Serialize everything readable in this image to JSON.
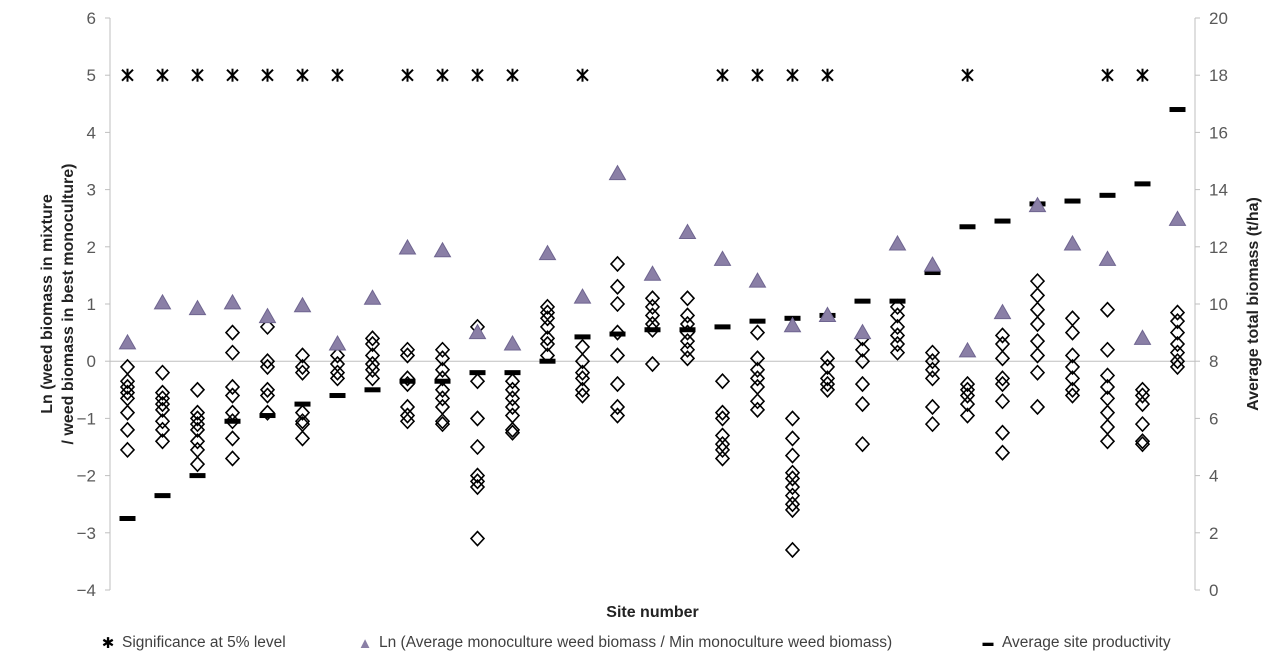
{
  "chart_data": {
    "type": "scatter",
    "xlabel": "Site number",
    "ylabel_left": "Ln (weed biomass in mixture / weed biomass in best monoculture)",
    "ylabel_left_lines": [
      "Ln (weed biomass in mixture",
      "/ weed biomass in best monoculture)"
    ],
    "ylabel_right": "Average total biomass  (t/ha)",
    "ylim_left": [
      -4,
      6
    ],
    "yticks_left": [
      -4,
      -3,
      -2,
      -1,
      0,
      1,
      2,
      3,
      4,
      5,
      6
    ],
    "ylim_right": [
      0,
      20
    ],
    "yticks_right": [
      0,
      2,
      4,
      6,
      8,
      10,
      12,
      14,
      16,
      18,
      20
    ],
    "n_sites": 31,
    "grid": false,
    "zero_line": true,
    "legend_position": "bottom",
    "series": [
      {
        "name": "Significance at 5% level",
        "marker": "asterisk",
        "axis": "left",
        "points": [
          [
            1,
            5
          ],
          [
            2,
            5
          ],
          [
            3,
            5
          ],
          [
            4,
            5
          ],
          [
            5,
            5
          ],
          [
            6,
            5
          ],
          [
            7,
            5
          ],
          [
            9,
            5
          ],
          [
            10,
            5
          ],
          [
            11,
            5
          ],
          [
            12,
            5
          ],
          [
            14,
            5
          ],
          [
            18,
            5
          ],
          [
            19,
            5
          ],
          [
            20,
            5
          ],
          [
            21,
            5
          ],
          [
            25,
            5
          ],
          [
            29,
            5
          ],
          [
            30,
            5
          ]
        ]
      },
      {
        "name": "Ln (Average monoculture weed biomass / Min monoculture weed biomass)",
        "marker": "triangle",
        "color": "#8a7fa6",
        "axis": "left",
        "values": [
          0.32,
          1.02,
          0.92,
          1.02,
          0.78,
          0.97,
          0.3,
          1.1,
          1.98,
          1.93,
          0.5,
          0.3,
          1.88,
          1.12,
          3.28,
          1.52,
          2.25,
          1.78,
          1.4,
          0.62,
          0.8,
          0.5,
          2.05,
          1.68,
          0.18,
          0.85,
          2.72,
          2.05,
          1.78,
          0.4,
          2.48
        ]
      },
      {
        "name": "Average site productivity",
        "marker": "dash",
        "axis": "right",
        "values": [
          2.5,
          3.3,
          4.0,
          5.9,
          6.1,
          6.5,
          6.8,
          7.0,
          7.3,
          7.3,
          7.6,
          7.6,
          8.0,
          8.85,
          8.95,
          9.1,
          9.1,
          9.2,
          9.4,
          9.5,
          9.6,
          10.1,
          10.1,
          11.1,
          12.7,
          12.9,
          13.5,
          13.6,
          13.8,
          14.2,
          16.8
        ]
      },
      {
        "name": "Ln (weed biomass in mixture / weed biomass in best monoculture)",
        "marker": "diamond",
        "axis": "left",
        "values": [
          [
            -0.1,
            -0.35,
            -0.45,
            -0.55,
            -0.65,
            -0.9,
            -1.2,
            -1.55
          ],
          [
            -0.2,
            -0.55,
            -0.65,
            -0.75,
            -0.85,
            -1.05,
            -1.2,
            -1.4
          ],
          [
            -0.5,
            -0.9,
            -1.0,
            -1.1,
            -1.2,
            -1.4,
            -1.55,
            -1.8
          ],
          [
            0.5,
            0.15,
            -0.45,
            -0.6,
            -0.9,
            -1.05,
            -1.35,
            -1.7
          ],
          [
            0.6,
            0.0,
            -0.1,
            -0.5,
            -0.6,
            -0.9
          ],
          [
            0.1,
            -0.1,
            -0.2,
            -0.9,
            -1.05,
            -1.1,
            -1.35
          ],
          [
            0.1,
            -0.05,
            -0.2,
            -0.3
          ],
          [
            0.4,
            0.3,
            0.1,
            -0.05,
            -0.15,
            -0.3
          ],
          [
            0.2,
            0.1,
            -0.3,
            -0.4,
            -0.8,
            -0.95,
            -1.05
          ],
          [
            0.2,
            0.05,
            -0.15,
            -0.3,
            -0.5,
            -0.65,
            -0.8,
            -1.05,
            -1.1
          ],
          [
            0.6,
            -0.35,
            -1.0,
            -1.5,
            -2.0,
            -2.1,
            -2.2,
            -3.1
          ],
          [
            -0.35,
            -0.5,
            -0.65,
            -0.8,
            -0.95,
            -1.2,
            -1.25
          ],
          [
            0.95,
            0.85,
            0.75,
            0.6,
            0.4,
            0.3,
            0.1
          ],
          [
            0.25,
            0.0,
            -0.2,
            -0.3,
            -0.5,
            -0.6
          ],
          [
            1.7,
            1.3,
            1.0,
            0.5,
            0.1,
            -0.4,
            -0.8,
            -0.95
          ],
          [
            1.1,
            0.95,
            0.8,
            0.65,
            0.55,
            -0.05
          ],
          [
            1.1,
            0.8,
            0.65,
            0.5,
            0.35,
            0.2,
            0.05
          ],
          [
            -0.35,
            -0.9,
            -1.0,
            -1.3,
            -1.45,
            -1.55,
            -1.7
          ],
          [
            0.5,
            0.05,
            -0.15,
            -0.3,
            -0.45,
            -0.7,
            -0.85
          ],
          [
            -1.0,
            -1.35,
            -1.65,
            -1.95,
            -2.05,
            -2.2,
            -2.35,
            -2.5,
            -2.6,
            -3.3
          ],
          [
            0.05,
            -0.1,
            -0.3,
            -0.4,
            -0.5
          ],
          [
            0.4,
            0.2,
            0.0,
            -0.4,
            -0.75,
            -1.45
          ],
          [
            0.95,
            0.8,
            0.6,
            0.45,
            0.3,
            0.15
          ],
          [
            0.15,
            0.0,
            -0.15,
            -0.3,
            -0.8,
            -1.1
          ],
          [
            -0.4,
            -0.5,
            -0.6,
            -0.75,
            -0.95
          ],
          [
            0.45,
            0.3,
            0.05,
            -0.3,
            -0.4,
            -0.7,
            -1.25,
            -1.6
          ],
          [
            1.4,
            1.15,
            0.9,
            0.65,
            0.35,
            0.1,
            -0.2,
            -0.8
          ],
          [
            0.75,
            0.5,
            0.1,
            -0.1,
            -0.3,
            -0.5,
            -0.6
          ],
          [
            0.9,
            0.2,
            -0.25,
            -0.45,
            -0.65,
            -0.9,
            -1.15,
            -1.4
          ],
          [
            -0.5,
            -0.6,
            -0.75,
            -1.1,
            -1.4,
            -1.45
          ],
          [
            0.85,
            0.7,
            0.5,
            0.3,
            0.15,
            0.0,
            -0.1
          ]
        ]
      }
    ]
  },
  "legend": [
    {
      "symbol": "✱",
      "label": "Significance at 5% level"
    },
    {
      "symbol": "▲",
      "label": "Ln (Average monoculture weed biomass / Min monoculture weed biomass)"
    },
    {
      "symbol": "▬",
      "label": "Average site productivity"
    }
  ],
  "colors": {
    "triangle": "#8a7fa6",
    "triangle_stroke": "#6f6590",
    "axis": "#bfbfbf",
    "marker": "#000000"
  }
}
